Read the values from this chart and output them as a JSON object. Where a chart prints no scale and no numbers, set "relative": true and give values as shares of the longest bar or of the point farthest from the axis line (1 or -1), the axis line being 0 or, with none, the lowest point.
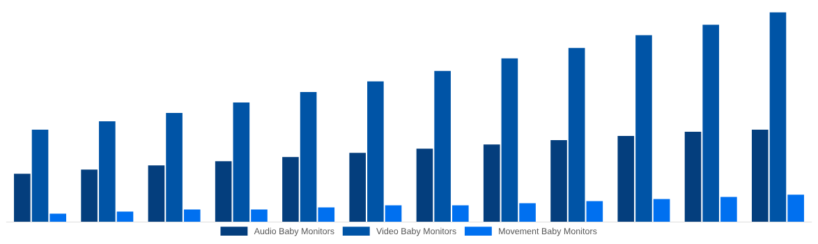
{
  "chart_data": {
    "type": "bar",
    "relative": true,
    "categories": [
      null,
      null,
      null,
      null,
      null,
      null,
      null,
      null,
      null,
      null,
      null,
      null
    ],
    "series": [
      {
        "name": "Audio Baby Monitors",
        "color": "#043e7d",
        "values": [
          0.23,
          0.25,
          0.27,
          0.29,
          0.31,
          0.33,
          0.35,
          0.37,
          0.39,
          0.41,
          0.43,
          0.44
        ]
      },
      {
        "name": "Video Baby Monitors",
        "color": "#0054a6",
        "values": [
          0.44,
          0.48,
          0.52,
          0.57,
          0.62,
          0.67,
          0.72,
          0.78,
          0.83,
          0.89,
          0.94,
          1
        ]
      },
      {
        "name": "Movement Baby Monitors",
        "color": "#0070f0",
        "values": [
          0.04,
          0.05,
          0.06,
          0.06,
          0.07,
          0.08,
          0.08,
          0.09,
          0.1,
          0.11,
          0.12,
          0.13
        ]
      }
    ],
    "legend": "bottom",
    "grid": false
  }
}
